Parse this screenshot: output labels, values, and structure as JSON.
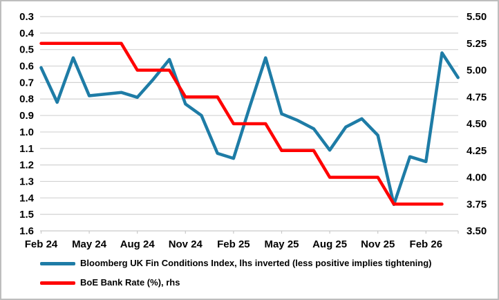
{
  "chart_data": {
    "type": "line",
    "title": "",
    "grid": true,
    "legend_position": "bottom",
    "x_categories": [
      "Feb 24",
      "Mar 24",
      "Apr 24",
      "May 24",
      "Jun 24",
      "Jul 24",
      "Aug 24",
      "Sep 24",
      "Oct 24",
      "Nov 24",
      "Dec 24",
      "Jan 25",
      "Feb 25",
      "Mar 25",
      "Apr 25",
      "May 25",
      "Jun 25",
      "Jul 25",
      "Aug 25",
      "Sep 25",
      "Oct 25",
      "Nov 25",
      "Dec 25",
      "Jan 26",
      "Feb 26",
      "Mar 26",
      "Apr 26"
    ],
    "x_tick_labels": [
      "Feb 24",
      "May 24",
      "Aug 24",
      "Nov 24",
      "Feb 25",
      "May 25",
      "Aug 25",
      "Nov 25",
      "Feb 26"
    ],
    "left_axis": {
      "min": 0.3,
      "max": 1.6,
      "step": 0.1,
      "inverted": true,
      "tick_labels": [
        "0.3",
        "0.4",
        "0.5",
        "0.6",
        "0.7",
        "0.8",
        "0.9",
        "1.0",
        "1.1",
        "1.2",
        "1.3",
        "1.4",
        "1.5",
        "1.6"
      ]
    },
    "right_axis": {
      "min": 3.5,
      "max": 5.5,
      "step": 0.25,
      "tick_labels": [
        "5.50",
        "5.25",
        "5.00",
        "4.75",
        "4.50",
        "4.25",
        "4.00",
        "3.75",
        "3.50"
      ]
    },
    "series": [
      {
        "name": "Bloomberg UK Fin Conditions Index, lhs inverted (less positive implies tightening)",
        "axis": "left",
        "color": "#1E7CA6",
        "values": [
          0.61,
          0.82,
          0.55,
          0.78,
          0.77,
          0.76,
          0.79,
          0.68,
          0.56,
          0.83,
          0.9,
          1.13,
          1.16,
          0.85,
          0.55,
          0.89,
          0.93,
          0.98,
          1.11,
          0.97,
          0.92,
          1.02,
          1.44,
          1.15,
          1.18,
          0.52,
          0.67
        ]
      },
      {
        "name": "BoE Bank Rate (%), rhs",
        "axis": "right",
        "color": "#FF0000",
        "values": [
          5.25,
          5.25,
          5.25,
          5.25,
          5.25,
          5.25,
          5.0,
          5.0,
          5.0,
          4.75,
          4.75,
          4.75,
          4.5,
          4.5,
          4.5,
          4.25,
          4.25,
          4.25,
          4.0,
          4.0,
          4.0,
          4.0,
          3.75,
          3.75,
          3.75,
          3.75
        ]
      }
    ]
  },
  "legend": {
    "items": [
      {
        "label": "Bloomberg UK Fin Conditions Index, lhs inverted (less positive implies tightening)",
        "color": "#1E7CA6"
      },
      {
        "label": "BoE Bank Rate (%), rhs",
        "color": "#FF0000"
      }
    ]
  },
  "colors": {
    "gridline": "#D2D2D2",
    "axis_line": "#C9C9C9",
    "text": "#000000",
    "frame_border": "#BDBDBD",
    "background": "#FFFFFF"
  }
}
